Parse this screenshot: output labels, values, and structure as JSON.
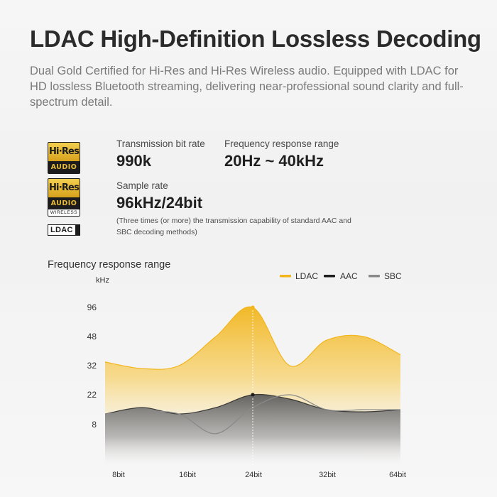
{
  "header": {
    "title": "LDAC High-Definition Lossless Decoding",
    "description": "Dual Gold Certified for Hi-Res and Hi-Res Wireless audio. Equipped with LDAC for HD lossless Bluetooth streaming, delivering near-professional sound clarity and full-spectrum detail."
  },
  "badges": {
    "hires_top": "Hi·Res",
    "hires_bottom": "AUDIO",
    "wireless_top": "Hi·Res",
    "wireless_bottom": "AUDIO",
    "wireless_label": "WIRELESS",
    "ldac": "LDAC"
  },
  "specs": {
    "bitrate_label": "Transmission bit rate",
    "bitrate_value": "990k",
    "freq_label": "Frequency response range",
    "freq_value": "20Hz ~ 40kHz",
    "sample_label": "Sample rate",
    "sample_value": "96kHz/24bit",
    "note": "(Three times (or more) the transmission capability of standard AAC and SBC decoding methods)"
  },
  "colors": {
    "ldac": "#f2b51c",
    "aac": "#1e1e1e",
    "sbc": "#8a8a8a"
  },
  "chart_data": {
    "type": "area",
    "title": "Frequency response range",
    "ylabel": "kHz",
    "y_ticks": [
      "96",
      "48",
      "32",
      "22",
      "8"
    ],
    "x_ticks": [
      "8bit",
      "16bit",
      "24bit",
      "32bit",
      "64bit"
    ],
    "legend": [
      "LDAC",
      "AAC",
      "SBC"
    ],
    "legend_position": "top-right",
    "grid": false,
    "series": [
      {
        "name": "LDAC",
        "x": [
          0,
          0.5,
          1,
          1.5,
          2,
          2.5,
          3,
          3.5,
          4
        ],
        "values": [
          34,
          31,
          32,
          48,
          96,
          32,
          46,
          48,
          38
        ],
        "marker": {
          "x": 2,
          "value": 96
        }
      },
      {
        "name": "AAC",
        "x": [
          0,
          0.5,
          1,
          1.5,
          2,
          2.5,
          3,
          3.5,
          4
        ],
        "values": [
          13,
          16,
          13,
          16,
          22,
          20,
          15,
          14,
          15
        ],
        "marker": {
          "x": 2,
          "value": 22
        }
      },
      {
        "name": "SBC",
        "x": [
          0,
          0.5,
          1,
          1.5,
          2,
          2.5,
          3,
          3.5,
          4
        ],
        "values": [
          13,
          14,
          13,
          6,
          16,
          22,
          15,
          15,
          15
        ]
      }
    ]
  }
}
